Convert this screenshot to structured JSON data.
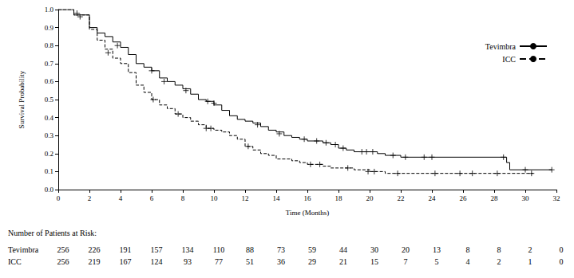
{
  "chart_data": {
    "type": "step",
    "x_label": "Time (Months)",
    "y_label": "Survival Probability",
    "xlim": [
      0,
      32
    ],
    "xticks": [
      0,
      2,
      4,
      6,
      8,
      10,
      12,
      14,
      16,
      18,
      20,
      22,
      24,
      26,
      28,
      30,
      32
    ],
    "ylim": [
      0,
      1
    ],
    "yticks": [
      {
        "value": 0,
        "label": "0.0"
      },
      0.1,
      0.2,
      0.3,
      0.4,
      0.5,
      0.6,
      0.7,
      0.8,
      0.9,
      {
        "value": 1,
        "label": "1.0"
      }
    ],
    "grid": false,
    "legend": "top-right",
    "series": [
      {
        "name": "Tevimbra",
        "color": "#000000",
        "line_style": "solid",
        "marker": "plus",
        "values": [
          [
            0,
            1.0
          ],
          [
            1,
            0.97
          ],
          [
            2,
            0.9
          ],
          [
            2.5,
            0.87
          ],
          [
            3,
            0.85
          ],
          [
            3.5,
            0.82
          ],
          [
            4,
            0.79
          ],
          [
            4.5,
            0.75
          ],
          [
            5,
            0.7
          ],
          [
            5.5,
            0.68
          ],
          [
            6,
            0.66
          ],
          [
            6.5,
            0.62
          ],
          [
            7,
            0.6
          ],
          [
            7.5,
            0.58
          ],
          [
            8,
            0.56
          ],
          [
            8.5,
            0.53
          ],
          [
            9,
            0.5
          ],
          [
            9.5,
            0.49
          ],
          [
            10,
            0.47
          ],
          [
            10.5,
            0.44
          ],
          [
            11,
            0.41
          ],
          [
            11.5,
            0.39
          ],
          [
            12,
            0.38
          ],
          [
            12.5,
            0.37
          ],
          [
            13,
            0.35
          ],
          [
            13.5,
            0.33
          ],
          [
            14,
            0.32
          ],
          [
            14.5,
            0.3
          ],
          [
            15,
            0.29
          ],
          [
            15.5,
            0.28
          ],
          [
            16,
            0.27
          ],
          [
            17,
            0.26
          ],
          [
            17.5,
            0.25
          ],
          [
            18,
            0.23
          ],
          [
            18.5,
            0.22
          ],
          [
            19,
            0.21
          ],
          [
            20.5,
            0.2
          ],
          [
            21,
            0.19
          ],
          [
            22,
            0.18
          ],
          [
            28.8,
            0.15
          ],
          [
            29,
            0.11
          ],
          [
            31.7,
            0.11
          ]
        ],
        "censored": [
          [
            1.2,
            0.98
          ],
          [
            3.8,
            0.8
          ],
          [
            6,
            0.66
          ],
          [
            6.8,
            0.6
          ],
          [
            8.2,
            0.55
          ],
          [
            9.6,
            0.49
          ],
          [
            10,
            0.48
          ],
          [
            12.8,
            0.36
          ],
          [
            14.2,
            0.31
          ],
          [
            15.8,
            0.28
          ],
          [
            16.6,
            0.27
          ],
          [
            17.2,
            0.26
          ],
          [
            17.8,
            0.25
          ],
          [
            18.3,
            0.23
          ],
          [
            19.5,
            0.21
          ],
          [
            19.8,
            0.21
          ],
          [
            20.2,
            0.21
          ],
          [
            21.5,
            0.19
          ],
          [
            22.3,
            0.18
          ],
          [
            23.5,
            0.18
          ],
          [
            24,
            0.18
          ],
          [
            28.6,
            0.18
          ],
          [
            30,
            0.11
          ],
          [
            31.7,
            0.11
          ]
        ]
      },
      {
        "name": "ICC",
        "color": "#000000",
        "line_style": "dashed",
        "marker": "plus",
        "values": [
          [
            0,
            1.0
          ],
          [
            1,
            0.97
          ],
          [
            2,
            0.89
          ],
          [
            2.5,
            0.83
          ],
          [
            3,
            0.78
          ],
          [
            3.5,
            0.73
          ],
          [
            4,
            0.7
          ],
          [
            4.5,
            0.65
          ],
          [
            5,
            0.58
          ],
          [
            5.5,
            0.54
          ],
          [
            6,
            0.5
          ],
          [
            6.5,
            0.47
          ],
          [
            7,
            0.45
          ],
          [
            7.5,
            0.42
          ],
          [
            8,
            0.4
          ],
          [
            8.5,
            0.38
          ],
          [
            9,
            0.36
          ],
          [
            9.5,
            0.34
          ],
          [
            10,
            0.33
          ],
          [
            10.5,
            0.32
          ],
          [
            11,
            0.3
          ],
          [
            11.5,
            0.28
          ],
          [
            12,
            0.24
          ],
          [
            12.5,
            0.22
          ],
          [
            13,
            0.2
          ],
          [
            13.5,
            0.19
          ],
          [
            14,
            0.17
          ],
          [
            15,
            0.16
          ],
          [
            15.5,
            0.15
          ],
          [
            16,
            0.14
          ],
          [
            17,
            0.13
          ],
          [
            17.5,
            0.12
          ],
          [
            19,
            0.11
          ],
          [
            20,
            0.1
          ],
          [
            21,
            0.09
          ],
          [
            30.5,
            0.09
          ]
        ],
        "censored": [
          [
            1.4,
            0.96
          ],
          [
            3.2,
            0.76
          ],
          [
            6.1,
            0.5
          ],
          [
            7.7,
            0.42
          ],
          [
            9.5,
            0.34
          ],
          [
            9.8,
            0.34
          ],
          [
            12.2,
            0.24
          ],
          [
            16.2,
            0.14
          ],
          [
            16.8,
            0.14
          ],
          [
            18.6,
            0.12
          ],
          [
            19.9,
            0.1
          ],
          [
            20.3,
            0.1
          ],
          [
            21.8,
            0.09
          ],
          [
            24.2,
            0.09
          ],
          [
            25.8,
            0.09
          ],
          [
            26.6,
            0.09
          ],
          [
            28.2,
            0.09
          ],
          [
            30.4,
            0.09
          ]
        ]
      }
    ],
    "risk_table": {
      "title": "Number of Patients at Risk:",
      "times": [
        0,
        2,
        4,
        6,
        8,
        10,
        12,
        14,
        16,
        18,
        20,
        22,
        24,
        26,
        28,
        30,
        32
      ],
      "rows": [
        {
          "name": "Tevimbra",
          "values": [
            256,
            226,
            191,
            157,
            134,
            110,
            88,
            73,
            59,
            44,
            30,
            20,
            13,
            8,
            8,
            2,
            0
          ]
        },
        {
          "name": "ICC",
          "values": [
            256,
            219,
            167,
            124,
            93,
            77,
            51,
            36,
            29,
            21,
            15,
            7,
            5,
            4,
            2,
            1,
            0
          ]
        }
      ]
    }
  }
}
